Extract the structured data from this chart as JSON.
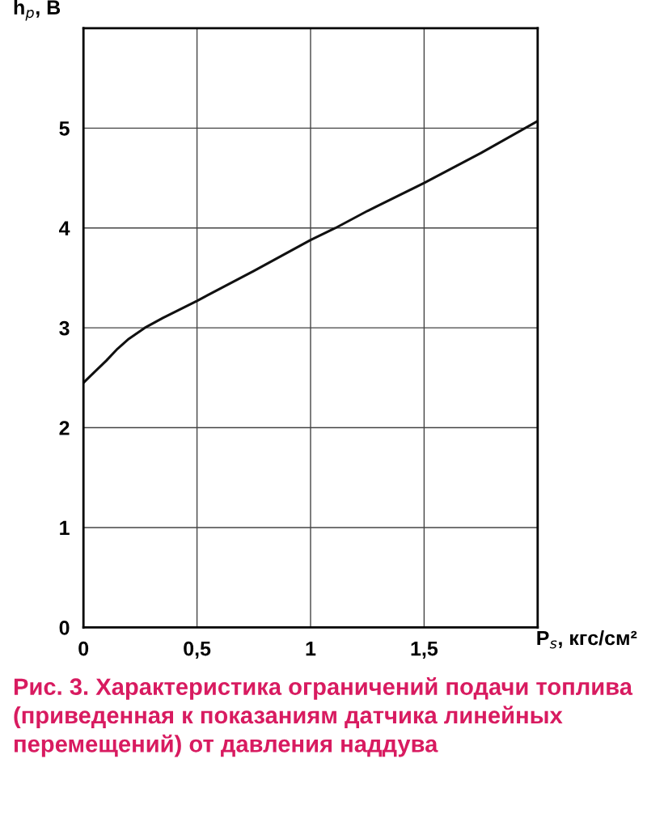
{
  "chart_data": {
    "type": "line",
    "xlabel": "P$_{s}$, кгс/см²",
    "ylabel": "h$_{p}$, B",
    "x": [
      0,
      0.05,
      0.1,
      0.15,
      0.2,
      0.27,
      0.35,
      0.5,
      0.75,
      1,
      1.11,
      1.25,
      1.5,
      1.75,
      2
    ],
    "series": [
      {
        "color": "#111111",
        "values": [
          2.45,
          2.56,
          2.67,
          2.79,
          2.89,
          3.0,
          3.1,
          3.27,
          3.57,
          3.88,
          4.0,
          4.17,
          4.45,
          4.75,
          5.07
        ]
      }
    ],
    "xlim": [
      0,
      2
    ],
    "xticks": [
      0,
      {
        "value": 0.5,
        "label": "0,5"
      },
      1,
      {
        "value": 1.5,
        "label": "1,5"
      },
      {
        "value": 2,
        "label": null
      }
    ],
    "ylim": [
      0,
      6
    ],
    "yticks": [
      0,
      1,
      2,
      3,
      4,
      5,
      {
        "value": 6,
        "label": null
      }
    ],
    "grid": true,
    "marker": "none",
    "line_style": "solid",
    "annotations": [
      "Рис. 3. Характеристика ограничений подачи топлива (приведенная к показаниям датчика линейных перемещений) от давления наддува"
    ]
  }
}
